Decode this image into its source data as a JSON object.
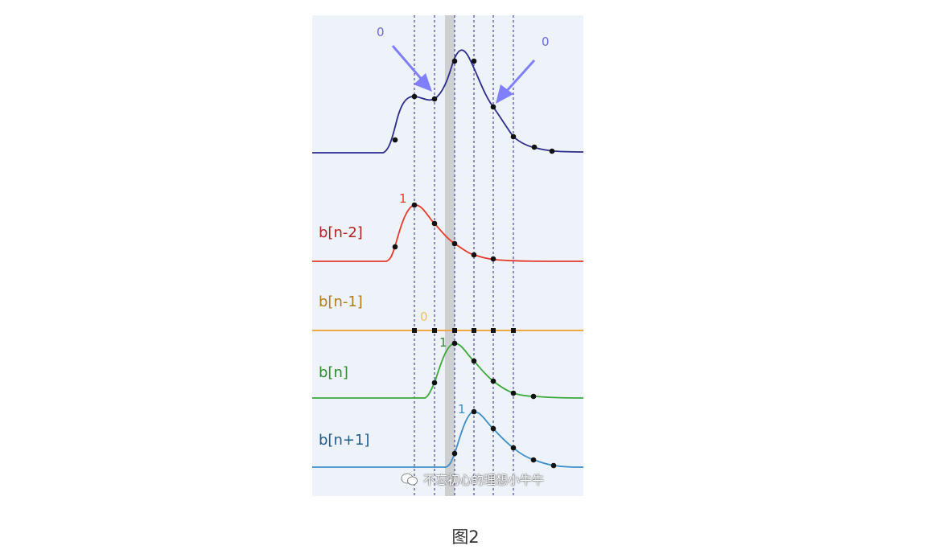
{
  "figure": {
    "labels": {
      "bn2": "b[n-2]",
      "bn1": "b[n-1]",
      "bn": "b[n]",
      "bnp1": "b[n+1]"
    },
    "values": {
      "sum_left_zero": "0",
      "sum_right_zero": "0",
      "bn2_one": "1",
      "bn1_zero": "0",
      "bn_one": "1",
      "bnp1_one": "1"
    },
    "colors": {
      "background": "#eef3fa",
      "sum_curve": "#2b2b8c",
      "bn2_curve": "#e8382a",
      "bn1_curve": "#f0a948",
      "bn_curve": "#3aa83a",
      "bnp1_curve": "#3b8ec9",
      "label_bn2": "#b22222",
      "label_bn1": "#b07b1e",
      "label_bn": "#2e8b2e",
      "label_bnp1": "#1f5a8a",
      "arrow": "#8080ff",
      "highlight_band": "#c8c8c8"
    },
    "watermark": "不忘初心的理想小牛牛"
  },
  "caption": "图2"
}
